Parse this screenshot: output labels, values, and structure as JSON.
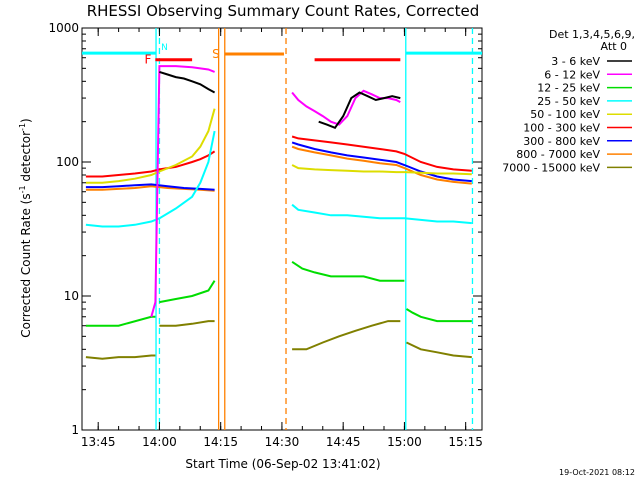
{
  "chart_data": {
    "type": "line",
    "title": "RHESSI Observing Summary Count Rates, Corrected",
    "xlabel": "Start Time (06-Sep-02 13:41:02)",
    "ylabel": "Corrected Count Rate (s",
    "ylabel_sup1": "-1",
    "ylabel_mid": " detector",
    "ylabel_sup2": "-1",
    "ylabel_end": ")",
    "y_scale": "log",
    "ylim": [
      1,
      1000
    ],
    "xlim": [
      "13:41:02",
      "15:19:00"
    ],
    "x_ticks": [
      "13:45",
      "14:00",
      "14:15",
      "14:30",
      "14:45",
      "15:00",
      "15:15"
    ],
    "y_ticks": [
      "1",
      "10",
      "100",
      "1000"
    ],
    "date_stamp": "19-Oct-2021 08:12",
    "legend": {
      "header1": "Det 1,3,4,5,6,9,",
      "header2": "Att 0",
      "entries": [
        {
          "label": "3 - 6 keV",
          "color": "#000000"
        },
        {
          "label": "6 - 12 keV",
          "color": "#ff00ff"
        },
        {
          "label": "12 - 25 keV",
          "color": "#00dd00"
        },
        {
          "label": "25 - 50 keV",
          "color": "#00ffff"
        },
        {
          "label": "50 - 100 keV",
          "color": "#dddd00"
        },
        {
          "label": "100 - 300 keV",
          "color": "#ff0000"
        },
        {
          "label": "300 - 800 keV",
          "color": "#0000ff"
        },
        {
          "label": "800 - 7000 keV",
          "color": "#ff8000"
        },
        {
          "label": "7000 - 15000 keV",
          "color": "#808000"
        }
      ]
    },
    "flags": {
      "F": {
        "label": "F",
        "color": "#ff0000",
        "start": "13:59:00",
        "end": "14:08:00",
        "value": 580
      },
      "N": {
        "label": "N",
        "color": "#00ffff"
      },
      "S": {
        "label": "S",
        "color": "#ff8000",
        "start": "14:16:00",
        "end": "14:30:30",
        "value": 640
      },
      "flare_bar": {
        "color": "#ff0000",
        "start": "14:38:00",
        "end": "14:59:00",
        "value": 580
      },
      "night_bar_1": {
        "color": "#00ffff",
        "start": "13:41:02",
        "end": "13:59:10",
        "value": 650
      },
      "night_bar_2": {
        "color": "#00ffff",
        "start": "15:00:20",
        "end": "15:19:00",
        "value": 650
      }
    },
    "markers": [
      {
        "time": "13:59:10",
        "color": "#00ffff",
        "style": "solid"
      },
      {
        "time": "14:00:00",
        "color": "#00ffff",
        "style": "dashed"
      },
      {
        "time": "14:14:30",
        "color": "#ff8000",
        "style": "solid"
      },
      {
        "time": "14:16:00",
        "color": "#ff8000",
        "style": "solid"
      },
      {
        "time": "14:31:00",
        "color": "#ff8000",
        "style": "dashed"
      },
      {
        "time": "15:00:20",
        "color": "#00ffff",
        "style": "solid"
      },
      {
        "time": "15:16:40",
        "color": "#00ffff",
        "style": "dashed"
      }
    ],
    "series": [
      {
        "name": "3 - 6 keV",
        "color": "#000000",
        "segments": [
          {
            "x": [
              "14:00:00",
              "14:02:00",
              "14:04:00",
              "14:06:00",
              "14:08:00",
              "14:10:00",
              "14:12:00",
              "14:13:30"
            ],
            "y": [
              470,
              450,
              430,
              420,
              400,
              380,
              350,
              330
            ]
          },
          {
            "x": [
              "14:39:00",
              "14:41:00",
              "14:43:00",
              "14:45:00",
              "14:47:00",
              "14:49:00",
              "14:51:00",
              "14:53:00",
              "14:55:00",
              "14:57:00",
              "14:59:00"
            ],
            "y": [
              200,
              190,
              180,
              220,
              300,
              330,
              310,
              290,
              300,
              310,
              300
            ]
          }
        ]
      },
      {
        "name": "6 - 12 keV",
        "color": "#ff00ff",
        "segments": [
          {
            "x": [
              "13:58:00",
              "13:59:00",
              "14:00:00",
              "14:04:00",
              "14:08:00",
              "14:12:00",
              "14:13:30"
            ],
            "y": [
              7,
              9,
              520,
              520,
              510,
              490,
              470
            ]
          },
          {
            "x": [
              "14:32:30",
              "14:34:00",
              "14:36:00",
              "14:38:00",
              "14:40:00",
              "14:42:00",
              "14:44:00",
              "14:46:00",
              "14:48:00",
              "14:50:00",
              "14:52:00",
              "14:54:00",
              "14:56:00",
              "14:58:00",
              "14:59:00"
            ],
            "y": [
              330,
              290,
              260,
              240,
              220,
              200,
              190,
              220,
              300,
              340,
              320,
              300,
              300,
              290,
              280
            ]
          }
        ]
      },
      {
        "name": "12 - 25 keV",
        "color": "#00dd00",
        "segments": [
          {
            "x": [
              "13:42:00",
              "13:50:00",
              "13:58:00",
              "13:59:00"
            ],
            "y": [
              6,
              6,
              7,
              7
            ]
          },
          {
            "x": [
              "14:00:00",
              "14:04:00",
              "14:08:00",
              "14:12:00",
              "14:13:30"
            ],
            "y": [
              9,
              9.5,
              10,
              11,
              13
            ]
          },
          {
            "x": [
              "14:32:30",
              "14:35:00",
              "14:38:00",
              "14:42:00",
              "14:46:00",
              "14:50:00",
              "14:54:00",
              "14:58:00",
              "15:00:00"
            ],
            "y": [
              18,
              16,
              15,
              14,
              14,
              14,
              13,
              13,
              13
            ]
          },
          {
            "x": [
              "15:00:30",
              "15:02:00",
              "15:04:00",
              "15:08:00",
              "15:12:00",
              "15:16:30"
            ],
            "y": [
              8,
              7.5,
              7,
              6.5,
              6.5,
              6.5
            ]
          }
        ]
      },
      {
        "name": "25 - 50 keV",
        "color": "#00ffff",
        "segments": [
          {
            "x": [
              "13:42:00",
              "13:46:00",
              "13:50:00",
              "13:54:00",
              "13:58:00",
              "14:00:00",
              "14:04:00",
              "14:08:00",
              "14:10:00",
              "14:12:00",
              "14:13:30"
            ],
            "y": [
              34,
              33,
              33,
              34,
              36,
              38,
              45,
              55,
              70,
              100,
              170
            ]
          },
          {
            "x": [
              "14:32:30",
              "14:34:00",
              "14:38:00",
              "14:42:00",
              "14:46:00",
              "14:50:00",
              "14:54:00",
              "14:58:00",
              "15:00:00",
              "15:04:00",
              "15:08:00",
              "15:12:00",
              "15:16:30"
            ],
            "y": [
              48,
              44,
              42,
              40,
              40,
              39,
              38,
              38,
              38,
              37,
              36,
              36,
              35
            ]
          }
        ]
      },
      {
        "name": "50 - 100 keV",
        "color": "#dddd00",
        "segments": [
          {
            "x": [
              "13:42:00",
              "13:46:00",
              "13:50:00",
              "13:54:00",
              "13:58:00",
              "14:00:00",
              "14:04:00",
              "14:08:00",
              "14:10:00",
              "14:12:00",
              "14:13:30"
            ],
            "y": [
              70,
              70,
              72,
              75,
              80,
              85,
              95,
              110,
              130,
              170,
              250
            ]
          },
          {
            "x": [
              "14:32:30",
              "14:34:00",
              "14:38:00",
              "14:42:00",
              "14:46:00",
              "14:50:00",
              "14:54:00",
              "14:58:00",
              "15:00:00",
              "15:04:00",
              "15:08:00",
              "15:12:00",
              "15:16:30"
            ],
            "y": [
              95,
              90,
              88,
              87,
              86,
              85,
              85,
              84,
              84,
              83,
              82,
              82,
              81
            ]
          }
        ]
      },
      {
        "name": "100 - 300 keV",
        "color": "#ff0000",
        "segments": [
          {
            "x": [
              "13:42:00",
              "13:46:00",
              "13:50:00",
              "13:54:00",
              "13:58:00",
              "14:00:00",
              "14:04:00",
              "14:08:00",
              "14:10:00",
              "14:12:00",
              "14:13:30"
            ],
            "y": [
              78,
              78,
              80,
              82,
              85,
              88,
              92,
              100,
              105,
              112,
              120
            ]
          },
          {
            "x": [
              "14:32:30",
              "14:34:00",
              "14:38:00",
              "14:42:00",
              "14:46:00",
              "14:50:00",
              "14:54:00",
              "14:58:00",
              "15:00:00",
              "15:04:00",
              "15:08:00",
              "15:12:00",
              "15:16:30"
            ],
            "y": [
              155,
              150,
              145,
              140,
              135,
              130,
              125,
              120,
              115,
              100,
              92,
              88,
              86
            ]
          }
        ]
      },
      {
        "name": "300 - 800 keV",
        "color": "#0000ff",
        "segments": [
          {
            "x": [
              "13:42:00",
              "13:46:00",
              "13:50:00",
              "13:54:00",
              "13:58:00",
              "14:02:00",
              "14:06:00",
              "14:10:00",
              "14:13:30"
            ],
            "y": [
              65,
              65,
              66,
              67,
              68,
              66,
              64,
              63,
              62
            ]
          },
          {
            "x": [
              "14:32:30",
              "14:34:00",
              "14:38:00",
              "14:42:00",
              "14:46:00",
              "14:50:00",
              "14:54:00",
              "14:58:00",
              "15:00:00",
              "15:04:00",
              "15:08:00",
              "15:12:00",
              "15:16:30"
            ],
            "y": [
              140,
              135,
              125,
              118,
              112,
              108,
              104,
              100,
              95,
              85,
              78,
              74,
              72
            ]
          }
        ]
      },
      {
        "name": "800 - 7000 keV",
        "color": "#ff8000",
        "segments": [
          {
            "x": [
              "13:42:00",
              "13:46:00",
              "13:50:00",
              "13:54:00",
              "13:58:00",
              "14:02:00",
              "14:06:00",
              "14:10:00",
              "14:13:30"
            ],
            "y": [
              62,
              62,
              63,
              64,
              66,
              64,
              63,
              62,
              61
            ]
          },
          {
            "x": [
              "14:32:30",
              "14:34:00",
              "14:38:00",
              "14:42:00",
              "14:46:00",
              "14:50:00",
              "14:54:00",
              "14:58:00",
              "15:00:00",
              "15:04:00",
              "15:08:00",
              "15:12:00",
              "15:16:30"
            ],
            "y": [
              130,
              125,
              118,
              112,
              106,
              102,
              98,
              95,
              90,
              80,
              74,
              71,
              69
            ]
          }
        ]
      },
      {
        "name": "7000 - 15000 keV",
        "color": "#808000",
        "segments": [
          {
            "x": [
              "13:42:00",
              "13:46:00",
              "13:50:00",
              "13:54:00",
              "13:58:00",
              "13:59:00"
            ],
            "y": [
              3.5,
              3.4,
              3.5,
              3.5,
              3.6,
              3.6
            ]
          },
          {
            "x": [
              "14:00:00",
              "14:04:00",
              "14:08:00",
              "14:12:00",
              "14:13:30"
            ],
            "y": [
              6,
              6,
              6.2,
              6.5,
              6.5
            ]
          },
          {
            "x": [
              "14:32:30",
              "14:36:00",
              "14:40:00",
              "14:44:00",
              "14:48:00",
              "14:52:00",
              "14:56:00",
              "14:59:00"
            ],
            "y": [
              4,
              4,
              4.5,
              5,
              5.5,
              6,
              6.5,
              6.5
            ]
          },
          {
            "x": [
              "15:00:30",
              "15:04:00",
              "15:08:00",
              "15:12:00",
              "15:16:30"
            ],
            "y": [
              4.5,
              4,
              3.8,
              3.6,
              3.5
            ]
          }
        ]
      }
    ]
  }
}
